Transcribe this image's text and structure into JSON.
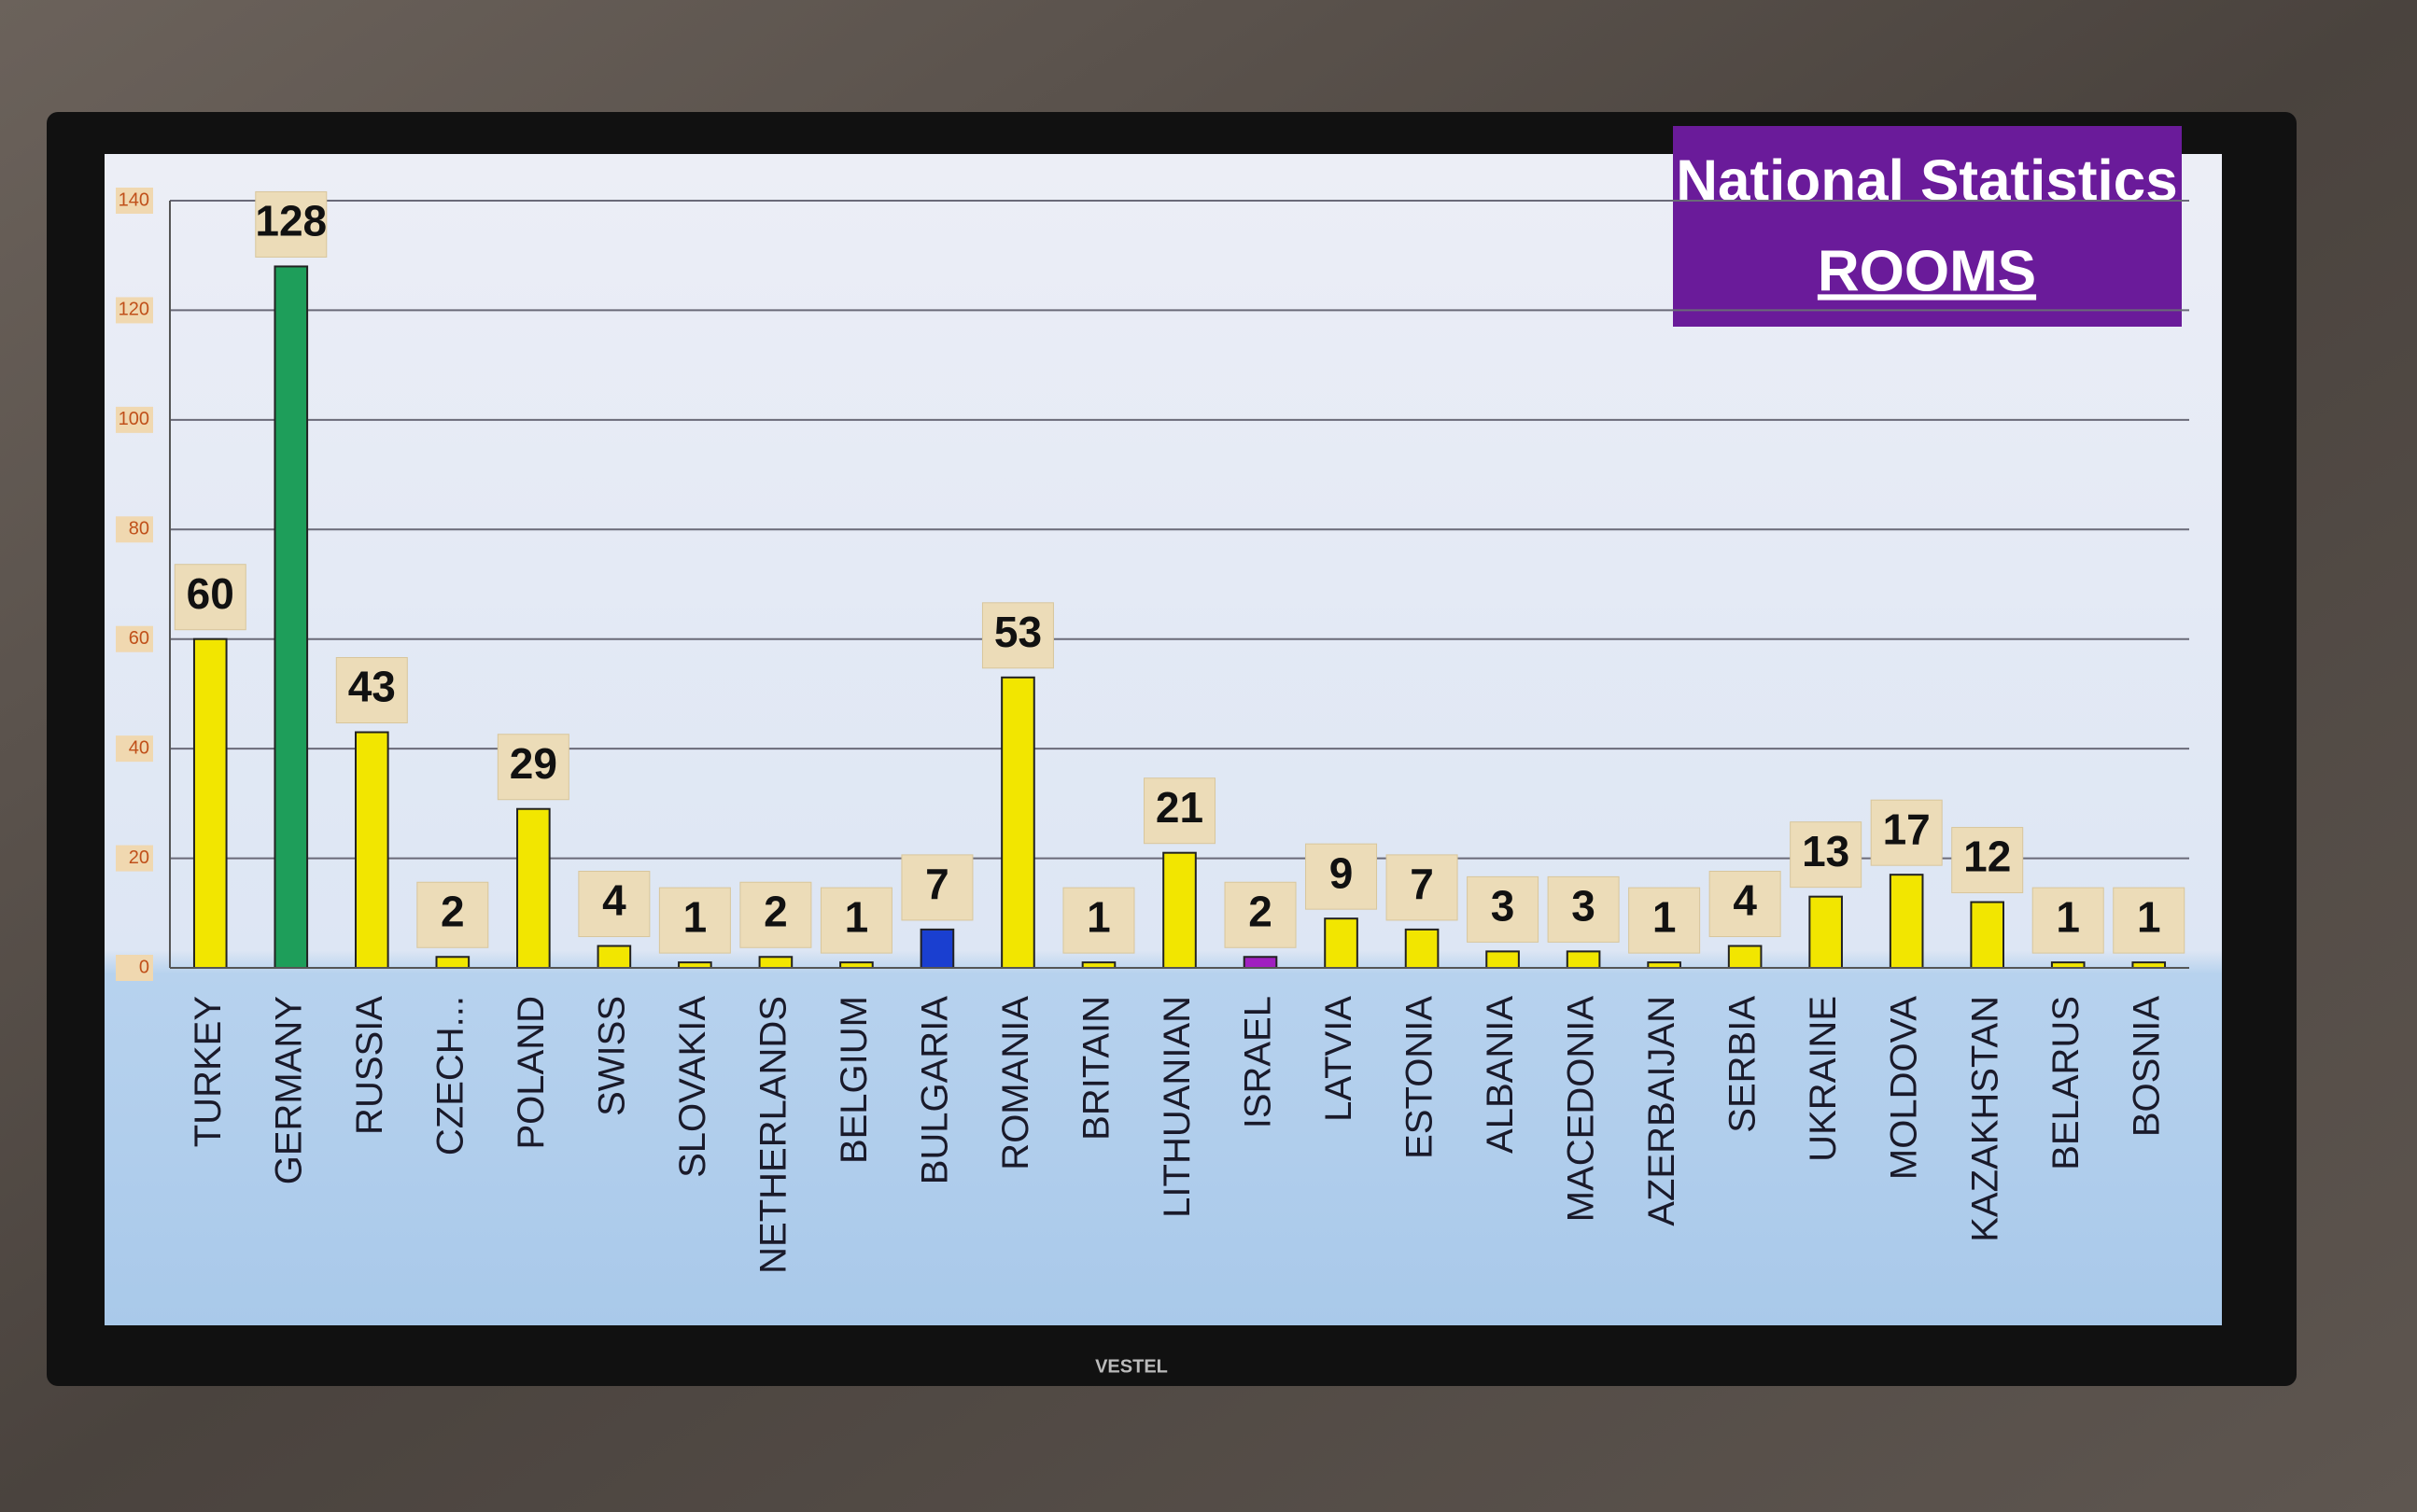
{
  "chart_data": {
    "type": "bar",
    "title": "National Statistics",
    "subtitle": "ROOMS",
    "categories": [
      "TURKEY",
      "GERMANY",
      "RUSSIA",
      "CZECH...",
      "POLAND",
      "SWISS",
      "SLOVAKIA",
      "NETHERLANDS",
      "BELGIUM",
      "BULGARIA",
      "ROMANIA",
      "BRITAIN",
      "LITHUANIAN",
      "ISRAEL",
      "LATVIA",
      "ESTONIA",
      "ALBANIA",
      "MACEDONIA",
      "AZERBAIJAN",
      "SERBIA",
      "UKRAINE",
      "MOLDOVA",
      "KAZAKHSTAN",
      "BELARUS",
      "BOSNIA"
    ],
    "values": [
      60,
      128,
      43,
      2,
      29,
      4,
      1,
      2,
      1,
      7,
      53,
      1,
      21,
      2,
      9,
      7,
      3,
      3,
      1,
      4,
      13,
      17,
      12,
      1,
      1
    ],
    "colors": [
      "#f2e600",
      "#1e9e5a",
      "#f2e600",
      "#f2e600",
      "#f2e600",
      "#f2e600",
      "#f2e600",
      "#f2e600",
      "#f2e600",
      "#1a3fd0",
      "#f2e600",
      "#f2e600",
      "#f2e600",
      "#a020c0",
      "#f2e600",
      "#f2e600",
      "#f2e600",
      "#f2e600",
      "#f2e600",
      "#f2e600",
      "#f2e600",
      "#f2e600",
      "#f2e600",
      "#f2e600",
      "#f2e600"
    ],
    "ylim": [
      0,
      140
    ],
    "yticks": [
      0,
      20,
      40,
      60,
      80,
      100,
      120,
      140
    ],
    "grid": true
  },
  "brand": "VESTEL"
}
